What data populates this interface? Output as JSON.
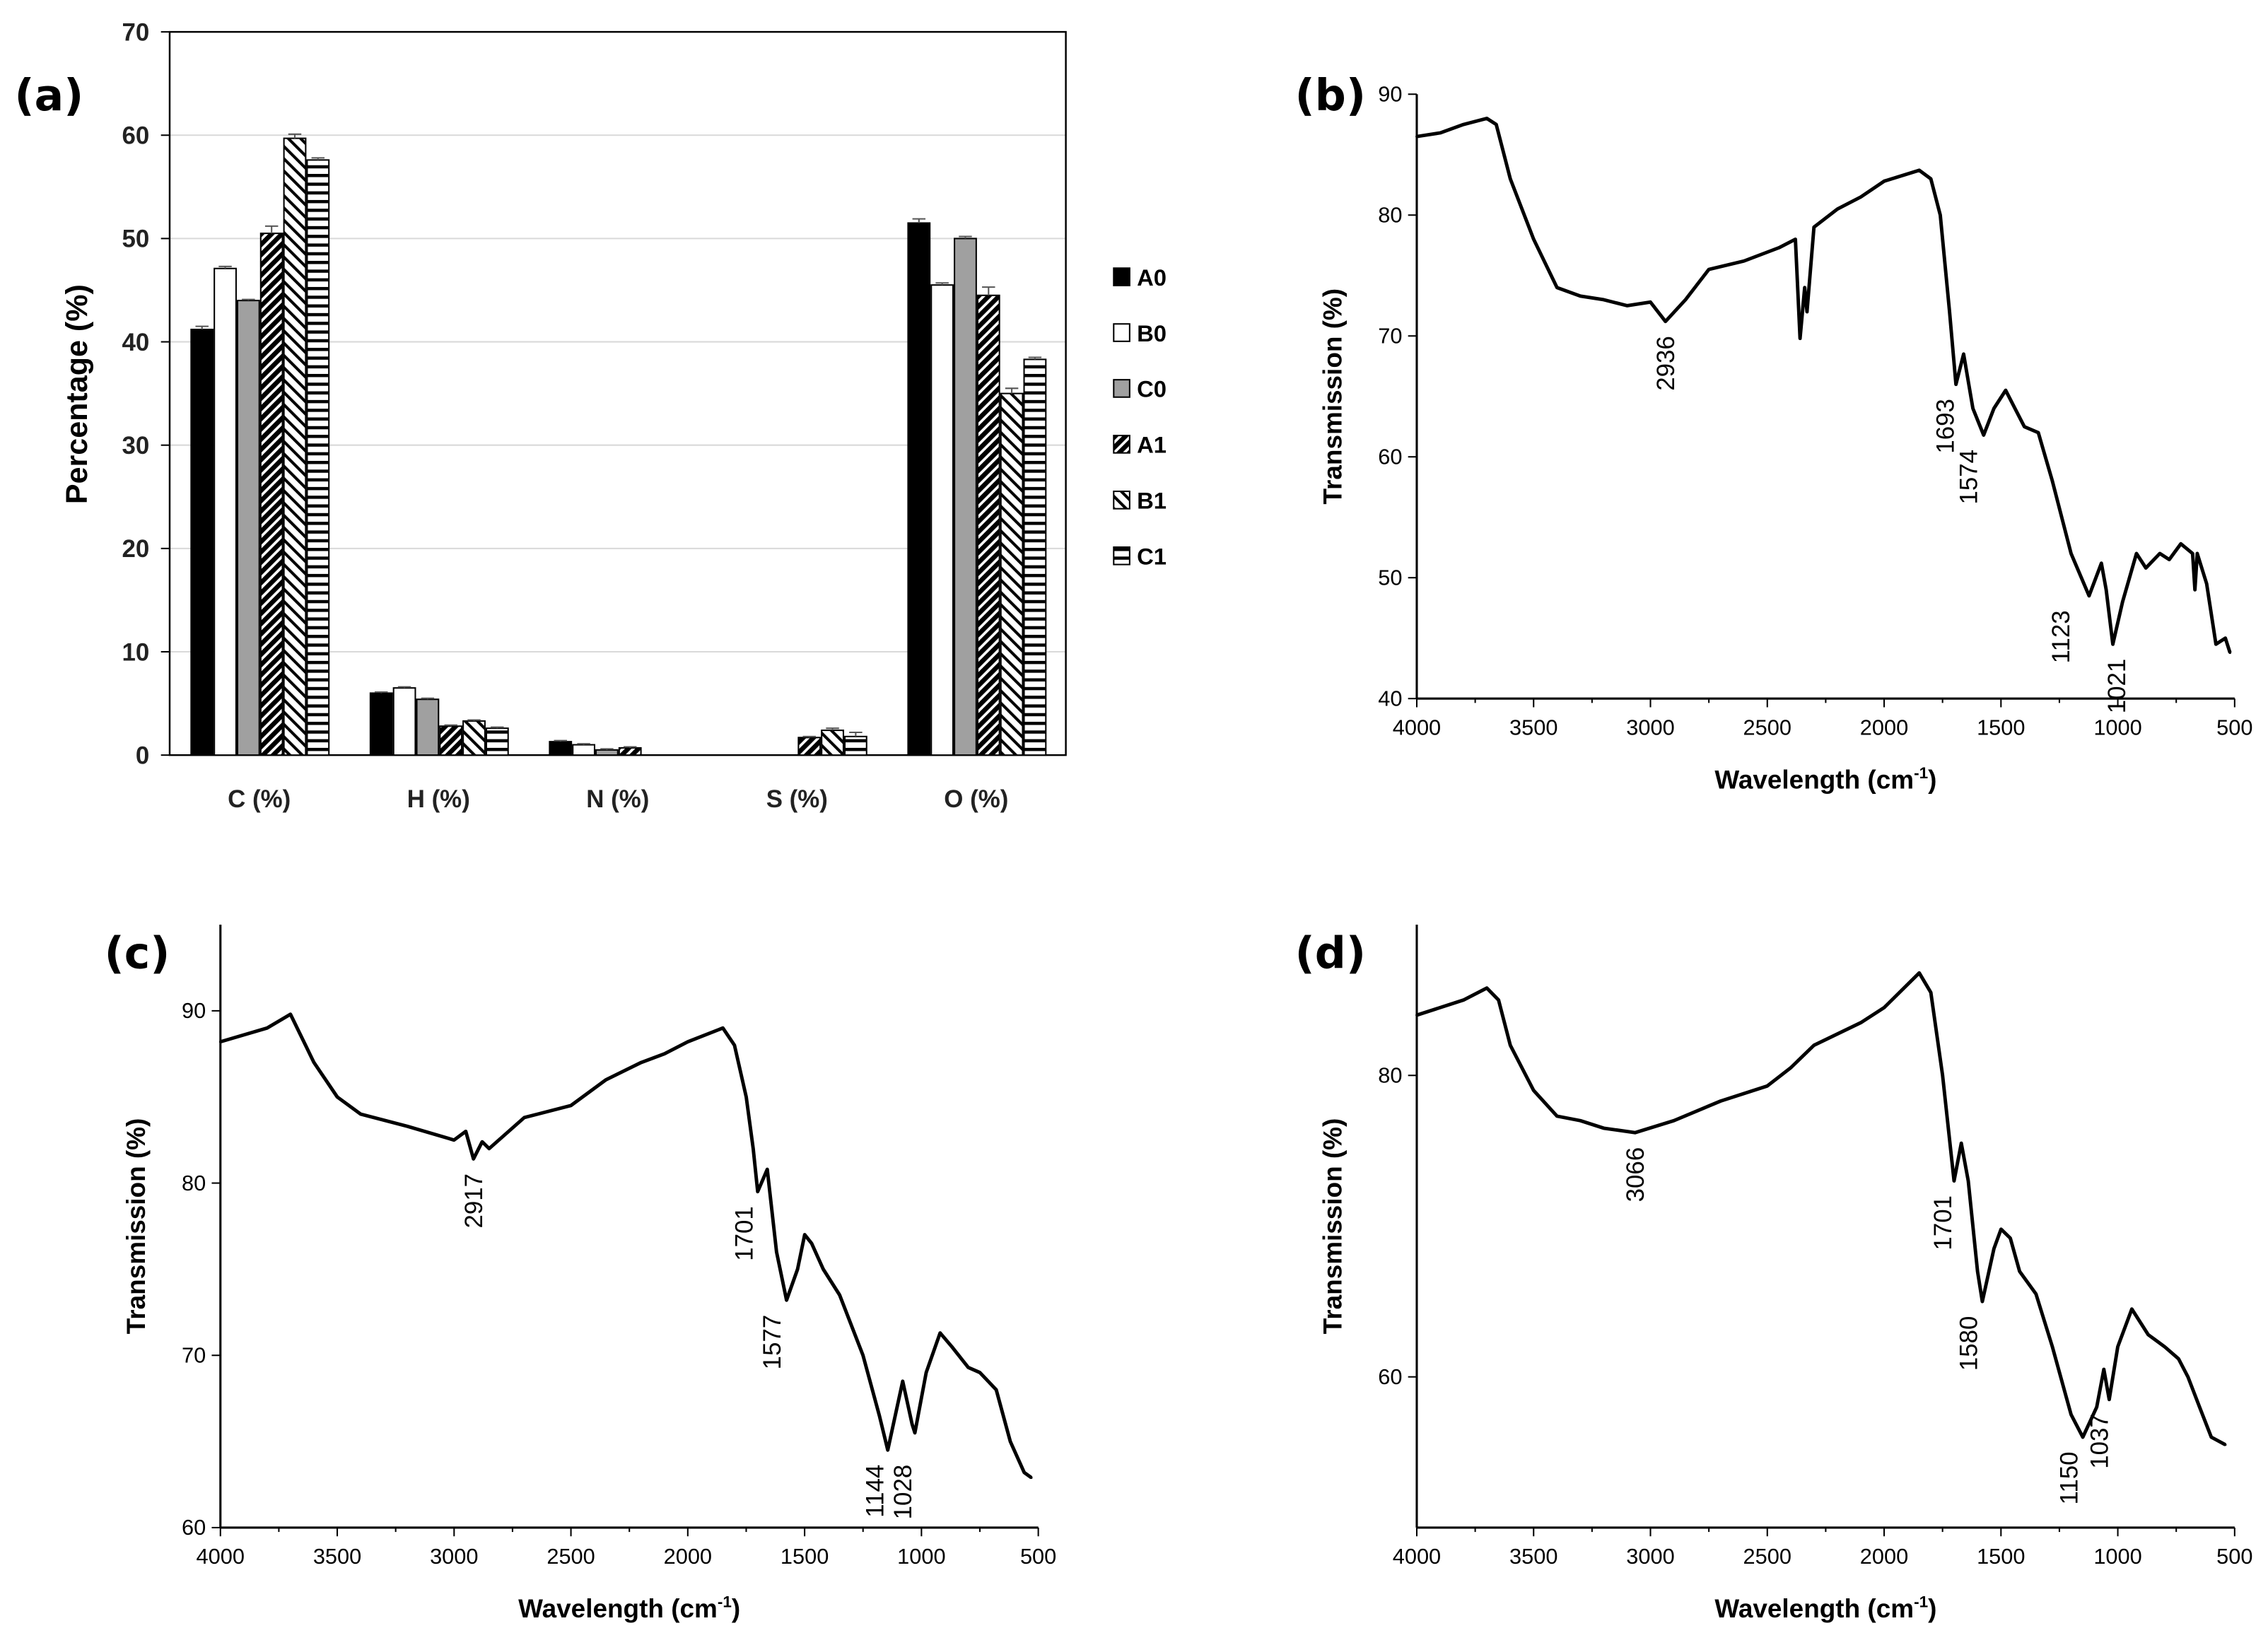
{
  "chart_data": [
    {
      "type": "bar",
      "panel_label": "(a)",
      "categories": [
        "C (%)",
        "H (%)",
        "N (%)",
        "S (%)",
        "O (%)"
      ],
      "ylabel": "Percentage (%)",
      "xlabel": "",
      "ylim": [
        0,
        70
      ],
      "yticks": [
        0,
        10,
        20,
        30,
        40,
        50,
        60,
        70
      ],
      "grid": true,
      "legend": "right",
      "error_bars": true,
      "series": [
        {
          "name": "A0",
          "fill": "solid-black",
          "values": [
            41.2,
            6.0,
            1.3,
            0,
            51.5
          ]
        },
        {
          "name": "B0",
          "fill": "white",
          "values": [
            47.1,
            6.5,
            1.0,
            0,
            45.5
          ]
        },
        {
          "name": "C0",
          "fill": "gray",
          "values": [
            44.0,
            5.4,
            0.5,
            0,
            50.0
          ]
        },
        {
          "name": "A1",
          "fill": "dense-diagonal-hatch",
          "values": [
            50.5,
            2.8,
            0.7,
            1.7,
            44.5
          ]
        },
        {
          "name": "B1",
          "fill": "diagonal-stripes",
          "values": [
            59.7,
            3.3,
            0,
            2.4,
            35.0
          ]
        },
        {
          "name": "C1",
          "fill": "horizontal-stripes",
          "values": [
            57.6,
            2.6,
            0,
            1.8,
            38.3
          ]
        }
      ],
      "errors": [
        [
          0.3,
          0.1,
          0.1,
          0,
          0.4
        ],
        [
          0.2,
          0.1,
          0.1,
          0,
          0.2
        ],
        [
          0.1,
          0.1,
          0.1,
          0,
          0.2
        ],
        [
          0.7,
          0.1,
          0.1,
          0.1,
          0.8
        ],
        [
          0.4,
          0.1,
          0,
          0.2,
          0.5
        ],
        [
          0.2,
          0.1,
          0,
          0.4,
          0.2
        ]
      ],
      "colors": {
        "A0": "#000000",
        "B0": "#ffffff",
        "C0": "#a0a0a0",
        "gridline": "#d9d9d9"
      }
    },
    {
      "type": "line",
      "panel_label": "(b)",
      "xlabel": "Wavelength (cm-1)",
      "ylabel": "Transmission (%)",
      "xlim": [
        4000,
        500
      ],
      "ylim": [
        40,
        90
      ],
      "xticks": [
        4000,
        3500,
        3000,
        2500,
        2000,
        1500,
        1000,
        500
      ],
      "yticks": [
        40,
        50,
        60,
        70,
        80,
        90
      ],
      "grid": false,
      "x": [
        4000,
        3900,
        3800,
        3700,
        3660,
        3600,
        3500,
        3400,
        3300,
        3200,
        3100,
        3000,
        2936,
        2850,
        2750,
        2600,
        2450,
        2380,
        2360,
        2340,
        2330,
        2300,
        2200,
        2100,
        2000,
        1850,
        1800,
        1760,
        1720,
        1693,
        1660,
        1620,
        1574,
        1530,
        1480,
        1440,
        1400,
        1340,
        1280,
        1200,
        1123,
        1070,
        1050,
        1021,
        980,
        920,
        880,
        820,
        780,
        730,
        680,
        670,
        660,
        620,
        580,
        540,
        520
      ],
      "y": [
        86.5,
        86.8,
        87.5,
        88,
        87.5,
        83,
        78,
        74,
        73.3,
        73,
        72.5,
        72.8,
        71.2,
        73,
        75.5,
        76.2,
        77.3,
        78,
        69.8,
        74,
        72,
        79,
        80.5,
        81.5,
        82.8,
        83.7,
        83,
        80,
        72,
        66,
        68.5,
        64,
        61.8,
        64,
        65.5,
        64,
        62.5,
        62,
        58,
        52,
        48.5,
        51.2,
        49,
        44.5,
        48,
        52,
        50.8,
        52,
        51.5,
        52.8,
        52,
        49,
        52,
        49.5,
        44.5,
        45,
        43.8
      ],
      "annotations": [
        {
          "text": "2936",
          "x": 2936,
          "y": 71.2
        },
        {
          "text": "1693",
          "x": 1740,
          "y": 66
        },
        {
          "text": "1574",
          "x": 1640,
          "y": 61.8
        },
        {
          "text": "1123",
          "x": 1245,
          "y": 48.5
        },
        {
          "text": "1021",
          "x": 1005,
          "y": 44.5
        }
      ]
    },
    {
      "type": "line",
      "panel_label": "(c)",
      "xlabel": "Wavelength (cm-1)",
      "ylabel": "Transmission (%)",
      "xlim": [
        4000,
        500
      ],
      "ylim": [
        60,
        95
      ],
      "xticks": [
        4000,
        3500,
        3000,
        2500,
        2000,
        1500,
        1000,
        500
      ],
      "yticks": [
        60,
        70,
        80,
        90
      ],
      "grid": false,
      "x": [
        4000,
        3800,
        3700,
        3600,
        3500,
        3400,
        3200,
        3000,
        2950,
        2917,
        2880,
        2850,
        2700,
        2500,
        2350,
        2200,
        2100,
        2000,
        1850,
        1800,
        1750,
        1720,
        1701,
        1660,
        1620,
        1577,
        1530,
        1500,
        1470,
        1420,
        1350,
        1250,
        1180,
        1144,
        1080,
        1040,
        1028,
        980,
        920,
        870,
        800,
        750,
        680,
        620,
        560,
        530
      ],
      "y": [
        88.2,
        89,
        89.8,
        87,
        85,
        84,
        83.3,
        82.5,
        83,
        81.4,
        82.4,
        82,
        83.8,
        84.5,
        86,
        87,
        87.5,
        88.2,
        89,
        88,
        85,
        82,
        79.5,
        80.8,
        76,
        73.2,
        75,
        77,
        76.5,
        75,
        73.5,
        70,
        66.5,
        64.5,
        68.5,
        66,
        65.5,
        69,
        71.3,
        70.5,
        69.3,
        69,
        68,
        65,
        63.2,
        62.9
      ],
      "annotations": [
        {
          "text": "2917",
          "x": 2917,
          "y": 81.4
        },
        {
          "text": "1701",
          "x": 1760,
          "y": 79.5
        },
        {
          "text": "1577",
          "x": 1640,
          "y": 73.2
        },
        {
          "text": "1144",
          "x": 1200,
          "y": 64.5
        },
        {
          "text": "1028",
          "x": 1080,
          "y": 64.5
        }
      ]
    },
    {
      "type": "line",
      "panel_label": "(d)",
      "xlabel": "Wavelength (cm-1)",
      "ylabel": "Transmission (%)",
      "xlim": [
        4000,
        500
      ],
      "ylim": [
        50,
        90
      ],
      "xticks": [
        4000,
        3500,
        3000,
        2500,
        2000,
        1500,
        1000,
        500
      ],
      "yticks": [
        60,
        80
      ],
      "grid": false,
      "x": [
        4000,
        3800,
        3700,
        3650,
        3600,
        3500,
        3400,
        3300,
        3200,
        3066,
        2900,
        2700,
        2500,
        2400,
        2300,
        2100,
        2000,
        1850,
        1800,
        1750,
        1701,
        1670,
        1640,
        1600,
        1580,
        1530,
        1500,
        1460,
        1420,
        1350,
        1280,
        1200,
        1150,
        1090,
        1060,
        1037,
        1000,
        940,
        870,
        800,
        740,
        700,
        650,
        600,
        540
      ],
      "y": [
        84,
        85,
        85.8,
        85,
        82,
        79,
        77.3,
        77,
        76.5,
        76.2,
        77,
        78.3,
        79.3,
        80.5,
        82,
        83.5,
        84.5,
        86.8,
        85.5,
        80,
        73,
        75.5,
        73,
        67,
        65,
        68.5,
        69.8,
        69.2,
        67,
        65.5,
        62,
        57.5,
        56,
        58,
        60.5,
        58.5,
        62,
        64.5,
        62.8,
        62,
        61.2,
        60,
        58,
        56,
        55.5
      ],
      "annotations": [
        {
          "text": "3066",
          "x": 3066,
          "y": 76.2
        },
        {
          "text": "1701",
          "x": 1750,
          "y": 73
        },
        {
          "text": "1580",
          "x": 1640,
          "y": 65
        },
        {
          "text": "1150",
          "x": 1210,
          "y": 56
        },
        {
          "text": "1037",
          "x": 1080,
          "y": 58.5
        }
      ]
    }
  ]
}
